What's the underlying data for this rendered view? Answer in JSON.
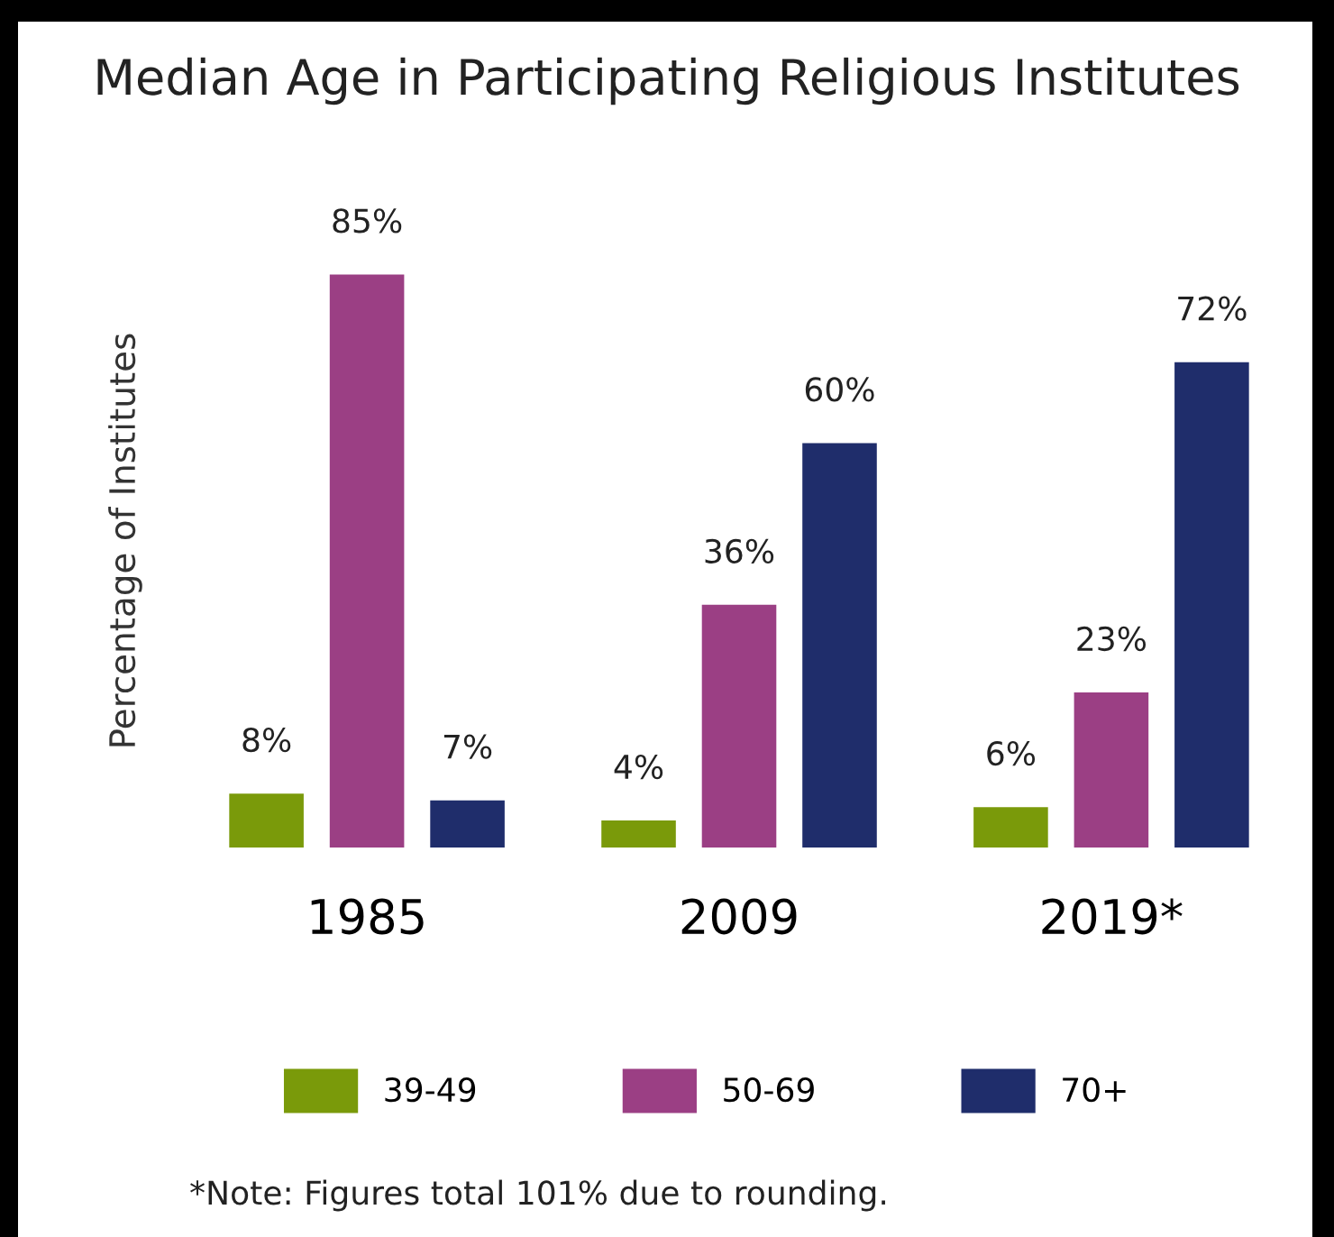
{
  "chart_data": {
    "type": "bar",
    "title": "Median Age in Participating Religious Institutes",
    "ylabel": "Percentage of Institutes",
    "categories": [
      "1985",
      "2009",
      "2019*"
    ],
    "series": [
      {
        "name": "39-49",
        "color": "#7a9a0a",
        "values": [
          8,
          4,
          6
        ],
        "value_labels": [
          "8%",
          "4%",
          "6%"
        ]
      },
      {
        "name": "50-69",
        "color": "#9b3f84",
        "values": [
          85,
          36,
          23
        ],
        "value_labels": [
          "85%",
          "36%",
          "23%"
        ]
      },
      {
        "name": "70+",
        "color": "#1f2d6b",
        "values": [
          7,
          60,
          72
        ],
        "value_labels": [
          "7%",
          "60%",
          "72%"
        ]
      }
    ],
    "legend": "bottom",
    "grid": false,
    "annotations": [
      "*Note: Figures total 101% due to rounding."
    ]
  }
}
